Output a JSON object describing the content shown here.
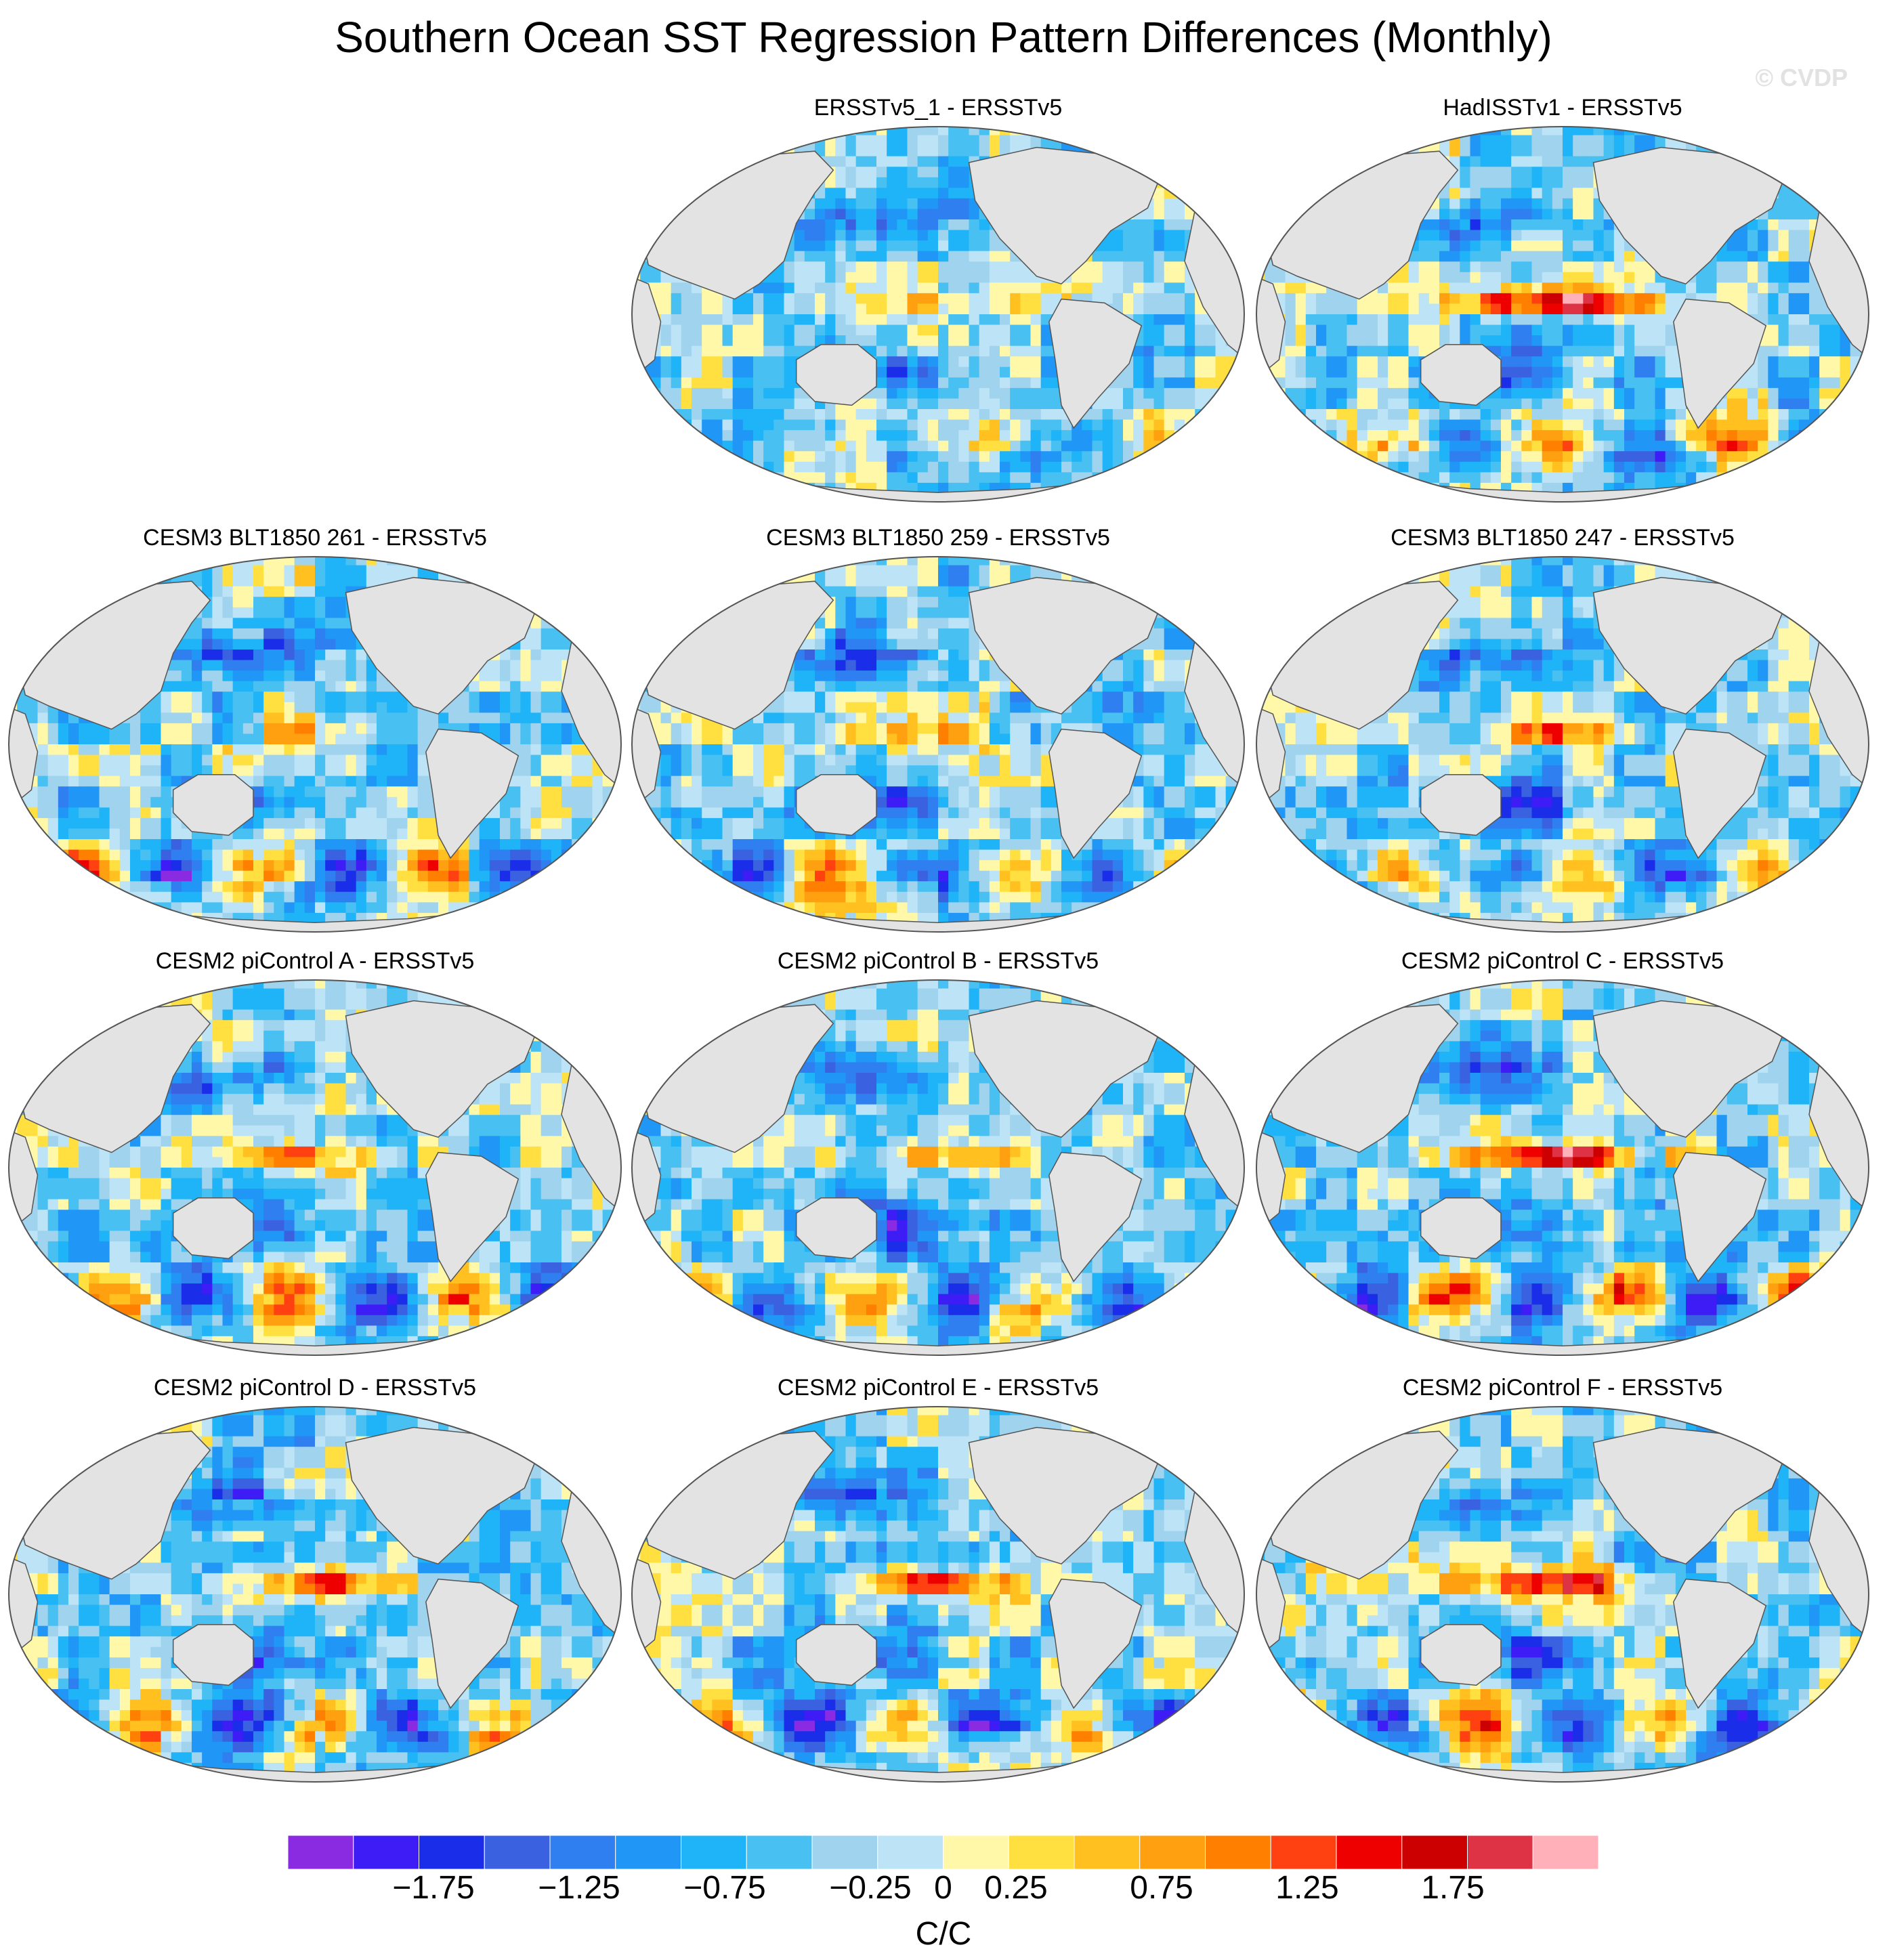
{
  "title": "Southern Ocean SST Regression Pattern Differences (Monthly)",
  "watermark": "© CVDP",
  "colors": {
    "land": "#e3e3e3",
    "coast": "#555555",
    "scale": [
      "#8a2be2",
      "#3d1cf5",
      "#1a2de8",
      "#3a62e0",
      "#2f7ff0",
      "#2096f7",
      "#1eb4f7",
      "#49c0f2",
      "#9fd3ee",
      "#bde3f6",
      "#fff8a8",
      "#ffe040",
      "#ffc020",
      "#ffa010",
      "#ff8000",
      "#ff4010",
      "#ee0000",
      "#cc0000",
      "#dd3344",
      "#ffb0b8"
    ]
  },
  "chart_data": {
    "type": "heatmap",
    "projection": "Robinson (Pacific-centered)",
    "colorbar": {
      "units": "C/C",
      "ticks": [
        -1.75,
        -1.25,
        -0.75,
        -0.25,
        0,
        0.25,
        0.75,
        1.25,
        1.75
      ],
      "tick_labels": [
        "−1.75",
        "−1.25",
        "−0.75",
        "−0.25",
        "0",
        "0.25",
        "0.75",
        "1.25",
        "1.75"
      ],
      "range": [
        -2.25,
        2.25
      ],
      "levels": 20
    },
    "panels": [
      {
        "title": "ERSSTv5_1 - ERSSTv5",
        "row": 0,
        "col": 1,
        "enso_amplitude": 0.6,
        "so_amplitude": 0.6
      },
      {
        "title": "HadISSTv1 - ERSSTv5",
        "row": 0,
        "col": 2,
        "enso_amplitude": 2.2,
        "so_amplitude": 1.3
      },
      {
        "title": "CESM3 BLT1850 261 - ERSSTv5",
        "row": 1,
        "col": 0,
        "enso_amplitude": 0.7,
        "so_amplitude": 1.2
      },
      {
        "title": "CESM3 BLT1850 259 - ERSSTv5",
        "row": 1,
        "col": 1,
        "enso_amplitude": 0.6,
        "so_amplitude": 1.1
      },
      {
        "title": "CESM3 BLT1850 247 - ERSSTv5",
        "row": 1,
        "col": 2,
        "enso_amplitude": 1.3,
        "so_amplitude": 1.1
      },
      {
        "title": "CESM2 piControl A - ERSSTv5",
        "row": 2,
        "col": 0,
        "enso_amplitude": 1.6,
        "so_amplitude": 1.4
      },
      {
        "title": "CESM2 piControl B - ERSSTv5",
        "row": 2,
        "col": 1,
        "enso_amplitude": 1.1,
        "so_amplitude": 1.2
      },
      {
        "title": "CESM2 piControl C - ERSSTv5",
        "row": 2,
        "col": 2,
        "enso_amplitude": 2.3,
        "so_amplitude": 1.4
      },
      {
        "title": "CESM2 piControl D - ERSSTv5",
        "row": 3,
        "col": 0,
        "enso_amplitude": 1.7,
        "so_amplitude": 1.2
      },
      {
        "title": "CESM2 piControl E - ERSSTv5",
        "row": 3,
        "col": 1,
        "enso_amplitude": 2.1,
        "so_amplitude": 1.3
      },
      {
        "title": "CESM2 piControl F - ERSSTv5",
        "row": 3,
        "col": 2,
        "enso_amplitude": 1.9,
        "so_amplitude": 1.2
      }
    ]
  }
}
